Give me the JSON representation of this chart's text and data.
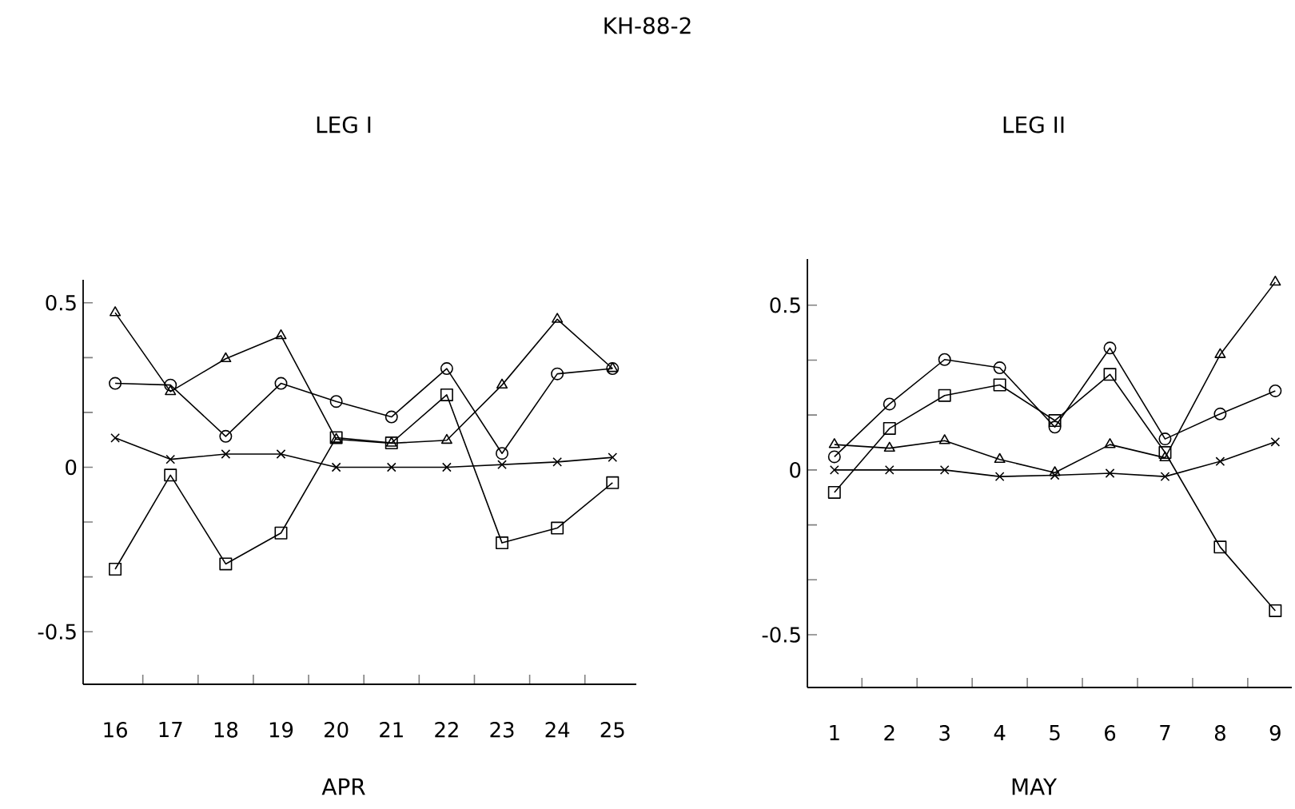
{
  "chart_data": [
    {
      "type": "line",
      "title": "LEG I",
      "xlabel": "APR",
      "annotations": [
        "KH-88-2"
      ],
      "line_style": "solid",
      "categories": [
        "16",
        "17",
        "18",
        "19",
        "20",
        "21",
        "22",
        "23",
        "24",
        "25"
      ],
      "ylim": [
        -0.66,
        0.57
      ],
      "yticks": [
        {
          "value": -0.5,
          "label": "-0.5"
        },
        {
          "value": -0.3333,
          "label": null
        },
        {
          "value": -0.1667,
          "label": null
        },
        0,
        {
          "value": 0.1667,
          "label": null
        },
        {
          "value": 0.3333,
          "label": null
        },
        {
          "value": 0.5,
          "label": "0.5"
        }
      ],
      "series": [
        {
          "color": "#000000",
          "marker": "triangle",
          "values": [
            0.47,
            0.23,
            0.33,
            0.4,
            0.085,
            0.073,
            0.082,
            0.25,
            0.45,
            0.3
          ]
        },
        {
          "color": "#000000",
          "marker": "circle",
          "values": [
            0.255,
            0.25,
            0.094,
            0.255,
            0.2,
            0.153,
            0.3,
            0.042,
            0.284,
            0.3
          ]
        },
        {
          "color": "#000000",
          "marker": "cross",
          "values": [
            0.089,
            0.024,
            0.04,
            0.04,
            0.0,
            0.0,
            0.0,
            0.008,
            0.016,
            0.03
          ]
        },
        {
          "color": "#000000",
          "marker": "square",
          "values": [
            -0.31,
            -0.024,
            -0.294,
            -0.2,
            0.09,
            0.074,
            0.22,
            -0.23,
            -0.185,
            -0.047
          ]
        }
      ]
    },
    {
      "type": "line",
      "title": "LEG II",
      "xlabel": "MAY",
      "line_style": "solid",
      "categories": [
        "1",
        "2",
        "3",
        "4",
        "5",
        "6",
        "7",
        "8",
        "9"
      ],
      "ylim": [
        -0.66,
        0.64
      ],
      "yticks": [
        {
          "value": -0.5,
          "label": "-0.5"
        },
        {
          "value": -0.3333,
          "label": null
        },
        {
          "value": -0.1667,
          "label": null
        },
        0,
        {
          "value": 0.1667,
          "label": null
        },
        {
          "value": 0.3333,
          "label": null
        },
        {
          "value": 0.5,
          "label": "0.5"
        }
      ],
      "series": [
        {
          "color": "#000000",
          "marker": "triangle",
          "values": [
            0.077,
            0.066,
            0.089,
            0.032,
            -0.008,
            0.077,
            0.037,
            0.35,
            0.57
          ]
        },
        {
          "color": "#000000",
          "marker": "circle",
          "values": [
            0.04,
            0.2,
            0.335,
            0.31,
            0.13,
            0.37,
            0.094,
            0.17,
            0.24
          ]
        },
        {
          "color": "#000000",
          "marker": "cross",
          "values": [
            0.0,
            0.0,
            0.0,
            -0.02,
            -0.016,
            -0.01,
            -0.02,
            0.026,
            0.085
          ]
        },
        {
          "color": "#000000",
          "marker": "square",
          "values": [
            -0.068,
            0.126,
            0.226,
            0.258,
            0.15,
            0.29,
            0.053,
            -0.234,
            -0.427
          ]
        }
      ]
    }
  ]
}
